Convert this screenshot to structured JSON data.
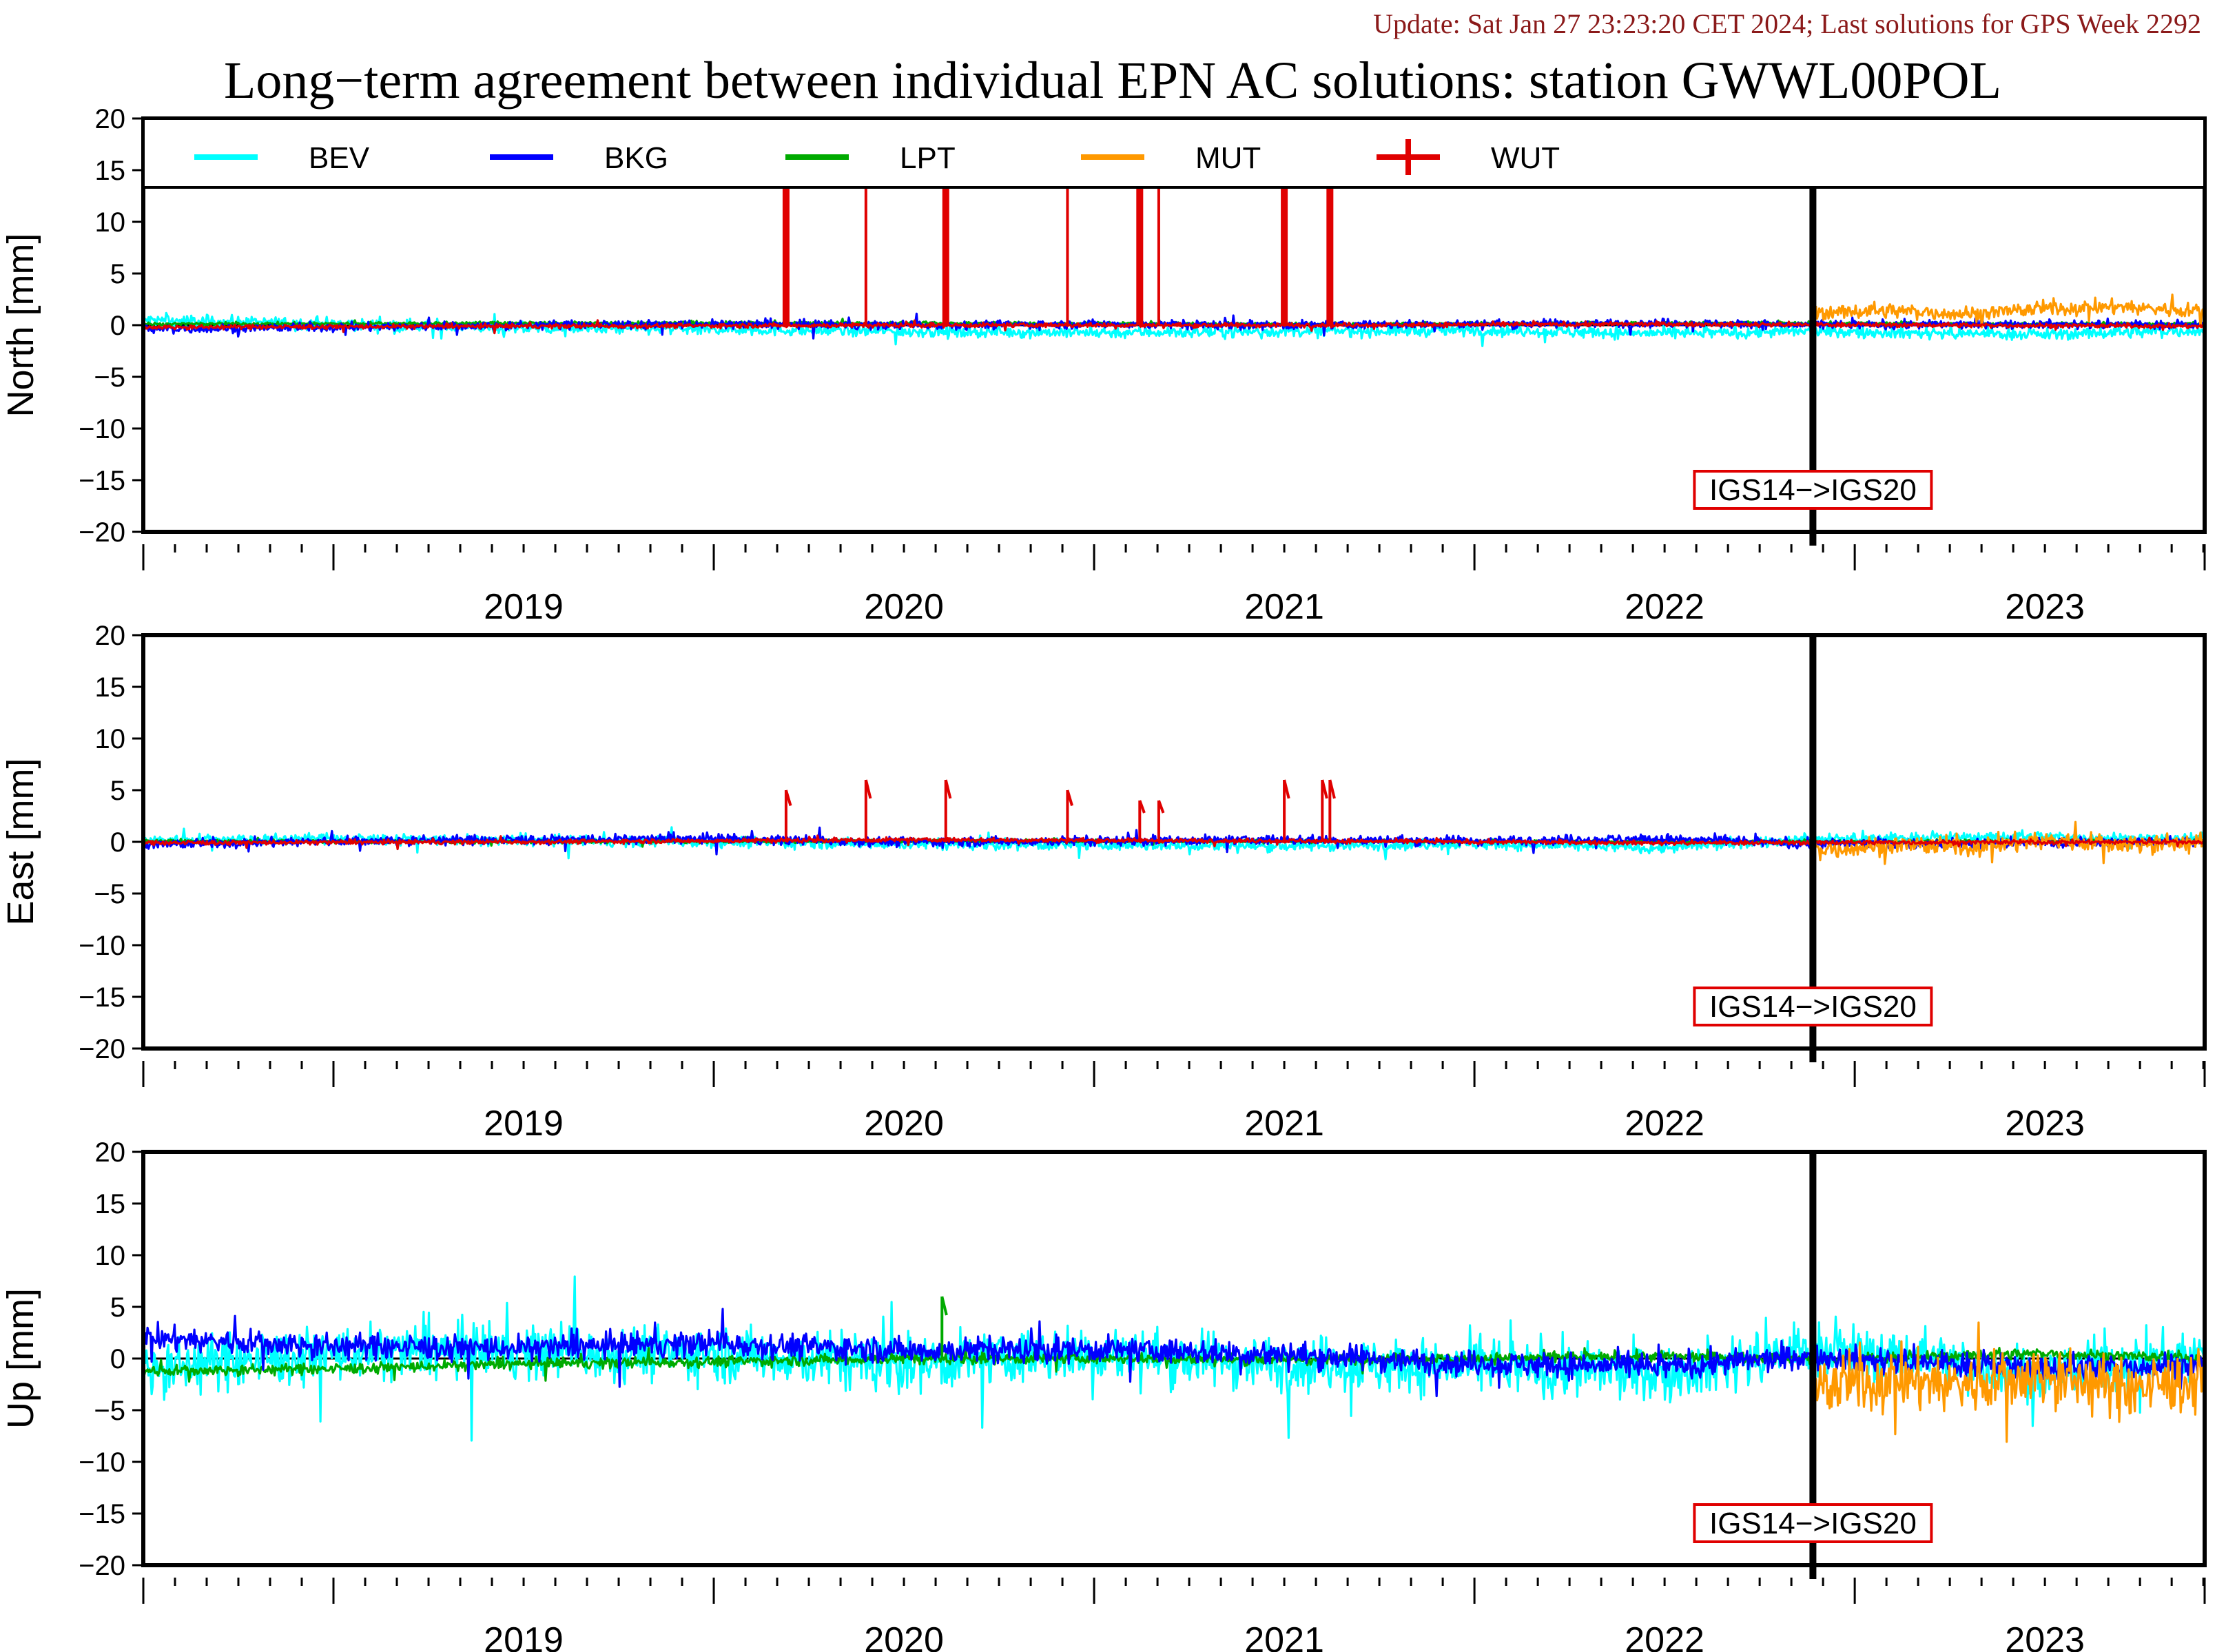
{
  "header": {
    "update": "Update: Sat Jan 27 23:23:20 CET 2024; Last solutions for GPS Week 2292",
    "title": "Long−term agreement between individual EPN AC solutions: station GWWL00POL"
  },
  "colors": {
    "BEV": "#00ffff",
    "BKG": "#0000ff",
    "LPT": "#00aa00",
    "MUT": "#ff9900",
    "WUT": "#e00000",
    "annotation_border": "#e00000",
    "update_text": "#8b1a1a"
  },
  "chart_data": [
    {
      "type": "line",
      "ylabel": "North [mm]",
      "ylim": [
        -20,
        20
      ],
      "yticks": [
        "20",
        "15",
        "10",
        "5",
        "0",
        "−5",
        "−10",
        "−15",
        "−20"
      ],
      "xlim": [
        2018.5,
        2023.92
      ],
      "xtick_labels": [
        "2019",
        "2020",
        "2021",
        "2022",
        "2023"
      ],
      "legend": [
        "BEV",
        "BKG",
        "LPT",
        "MUT",
        "WUT"
      ],
      "legend_placement": "top, full width",
      "annotation": "IGS14−>IGS20",
      "annotation_x": 2022.89,
      "series": [
        {
          "name": "BEV",
          "x": [
            2018.5,
            2019.0,
            2019.5,
            2020.0,
            2020.5,
            2021.0,
            2021.5,
            2022.0,
            2022.5,
            2022.89,
            2023.5,
            2023.92
          ],
          "y": [
            0.5,
            0.1,
            -0.3,
            -0.4,
            -0.6,
            -0.7,
            -0.6,
            -0.5,
            -0.8,
            -0.6,
            -0.9,
            -0.5
          ]
        },
        {
          "name": "BKG",
          "x": [
            2018.5,
            2019.0,
            2019.5,
            2020.0,
            2020.5,
            2021.0,
            2021.5,
            2022.0,
            2022.5,
            2022.89,
            2023.5,
            2023.92
          ],
          "y": [
            -0.4,
            -0.2,
            0.0,
            0.1,
            0.0,
            0.1,
            0.0,
            0.1,
            0.2,
            0.0,
            0.1,
            0.0
          ]
        },
        {
          "name": "LPT",
          "x": [
            2018.5,
            2019.5,
            2020.5,
            2021.5,
            2022.5,
            2023.92
          ],
          "y": [
            0.1,
            0.2,
            0.2,
            0.1,
            0.2,
            0.1
          ]
        },
        {
          "name": "MUT",
          "x": [
            2022.89,
            2023.1,
            2023.3,
            2023.5,
            2023.7,
            2023.92
          ],
          "y": [
            1.2,
            1.4,
            1.1,
            1.6,
            1.8,
            1.3
          ]
        },
        {
          "name": "WUT",
          "x": [
            2018.5,
            2019.5,
            2020.5,
            2021.5,
            2022.5,
            2023.92
          ],
          "y": [
            -0.2,
            -0.1,
            0.0,
            0.0,
            0.1,
            -0.1
          ]
        }
      ],
      "spikes": {
        "series": "WUT",
        "x": [
          2020.19,
          2020.4,
          2020.61,
          2020.93,
          2021.12,
          2021.17,
          2021.5,
          2021.62
        ],
        "y": [
          20,
          20,
          20,
          20,
          20,
          20,
          20,
          20
        ]
      }
    },
    {
      "type": "line",
      "ylabel": "East [mm]",
      "ylim": [
        -20,
        20
      ],
      "yticks": [
        "20",
        "15",
        "10",
        "5",
        "0",
        "−5",
        "−10",
        "−15",
        "−20"
      ],
      "xlim": [
        2018.5,
        2023.92
      ],
      "xtick_labels": [
        "2019",
        "2020",
        "2021",
        "2022",
        "2023"
      ],
      "annotation": "IGS14−>IGS20",
      "annotation_x": 2022.89,
      "series": [
        {
          "name": "BEV",
          "x": [
            2018.5,
            2019.0,
            2019.5,
            2020.0,
            2020.5,
            2021.0,
            2021.5,
            2022.0,
            2022.5,
            2022.89,
            2023.5,
            2023.92
          ],
          "y": [
            0.2,
            0.3,
            0.1,
            0.0,
            -0.2,
            -0.3,
            -0.4,
            -0.2,
            -0.6,
            0.3,
            0.5,
            0.2
          ]
        },
        {
          "name": "BKG",
          "x": [
            2018.5,
            2019.0,
            2019.5,
            2020.0,
            2020.5,
            2021.0,
            2021.5,
            2022.0,
            2022.5,
            2022.89,
            2023.5,
            2023.92
          ],
          "y": [
            -0.3,
            0.1,
            0.2,
            0.3,
            0.0,
            0.1,
            0.2,
            0.1,
            0.3,
            -0.2,
            -0.1,
            0.0
          ]
        },
        {
          "name": "LPT",
          "x": [
            2018.5,
            2019.5,
            2020.5,
            2021.5,
            2022.5,
            2023.92
          ],
          "y": [
            0.1,
            0.0,
            0.1,
            0.1,
            0.0,
            0.1
          ]
        },
        {
          "name": "MUT",
          "x": [
            2022.89,
            2023.1,
            2023.3,
            2023.5,
            2023.7,
            2023.92
          ],
          "y": [
            -0.8,
            -0.3,
            -0.5,
            0.2,
            -0.2,
            -0.1
          ]
        },
        {
          "name": "WUT",
          "x": [
            2018.5,
            2019.5,
            2020.5,
            2021.5,
            2022.5,
            2023.92
          ],
          "y": [
            -0.1,
            0.0,
            0.2,
            0.1,
            -0.1,
            0.0
          ]
        }
      ],
      "spikes": {
        "series": "WUT",
        "x": [
          2020.19,
          2020.4,
          2020.61,
          2020.93,
          2021.12,
          2021.17,
          2021.5,
          2021.6,
          2021.62
        ],
        "y": [
          5,
          6,
          6,
          5,
          4,
          4,
          6,
          6,
          6
        ]
      }
    },
    {
      "type": "line",
      "ylabel": "Up [mm]",
      "ylim": [
        -20,
        20
      ],
      "yticks": [
        "20",
        "15",
        "10",
        "5",
        "0",
        "−5",
        "−10",
        "−15",
        "−20"
      ],
      "xlim": [
        2018.5,
        2023.92
      ],
      "xtick_labels": [
        "2019",
        "2020",
        "2021",
        "2022",
        "2023"
      ],
      "annotation": "IGS14−>IGS20",
      "annotation_x": 2022.89,
      "series": [
        {
          "name": "BEV",
          "x": [
            2018.5,
            2019.0,
            2019.5,
            2020.0,
            2020.5,
            2021.0,
            2021.5,
            2022.0,
            2022.5,
            2022.89,
            2023.5,
            2023.92
          ],
          "y": [
            -1.0,
            0.5,
            0.8,
            0.5,
            -0.5,
            0.5,
            -0.5,
            -0.8,
            -1.5,
            1.0,
            -1.5,
            0.5
          ]
        },
        {
          "name": "BKG",
          "x": [
            2018.5,
            2019.0,
            2019.5,
            2020.0,
            2020.5,
            2021.0,
            2021.5,
            2022.0,
            2022.5,
            2022.89,
            2023.5,
            2023.92
          ],
          "y": [
            2.0,
            1.2,
            1.0,
            1.5,
            0.8,
            0.9,
            0.4,
            -0.5,
            -0.8,
            0.2,
            -1.0,
            -0.5
          ]
        },
        {
          "name": "LPT",
          "x": [
            2018.5,
            2019.0,
            2019.5,
            2020.0,
            2020.5,
            2021.0,
            2021.5,
            2022.0,
            2022.5,
            2023.0,
            2023.5,
            2023.92
          ],
          "y": [
            -1.2,
            -1.0,
            -0.5,
            -0.3,
            0.0,
            0.0,
            -0.1,
            0.0,
            0.2,
            0.0,
            0.5,
            0.0
          ]
        },
        {
          "name": "MUT",
          "x": [
            2022.89,
            2023.1,
            2023.3,
            2023.5,
            2023.7,
            2023.92
          ],
          "y": [
            -3.0,
            -2.0,
            -2.5,
            -1.5,
            -3.0,
            -2.0
          ]
        }
      ],
      "spikes": {
        "series": "LPT",
        "x": [
          2020.6
        ],
        "y": [
          6
        ]
      }
    }
  ]
}
